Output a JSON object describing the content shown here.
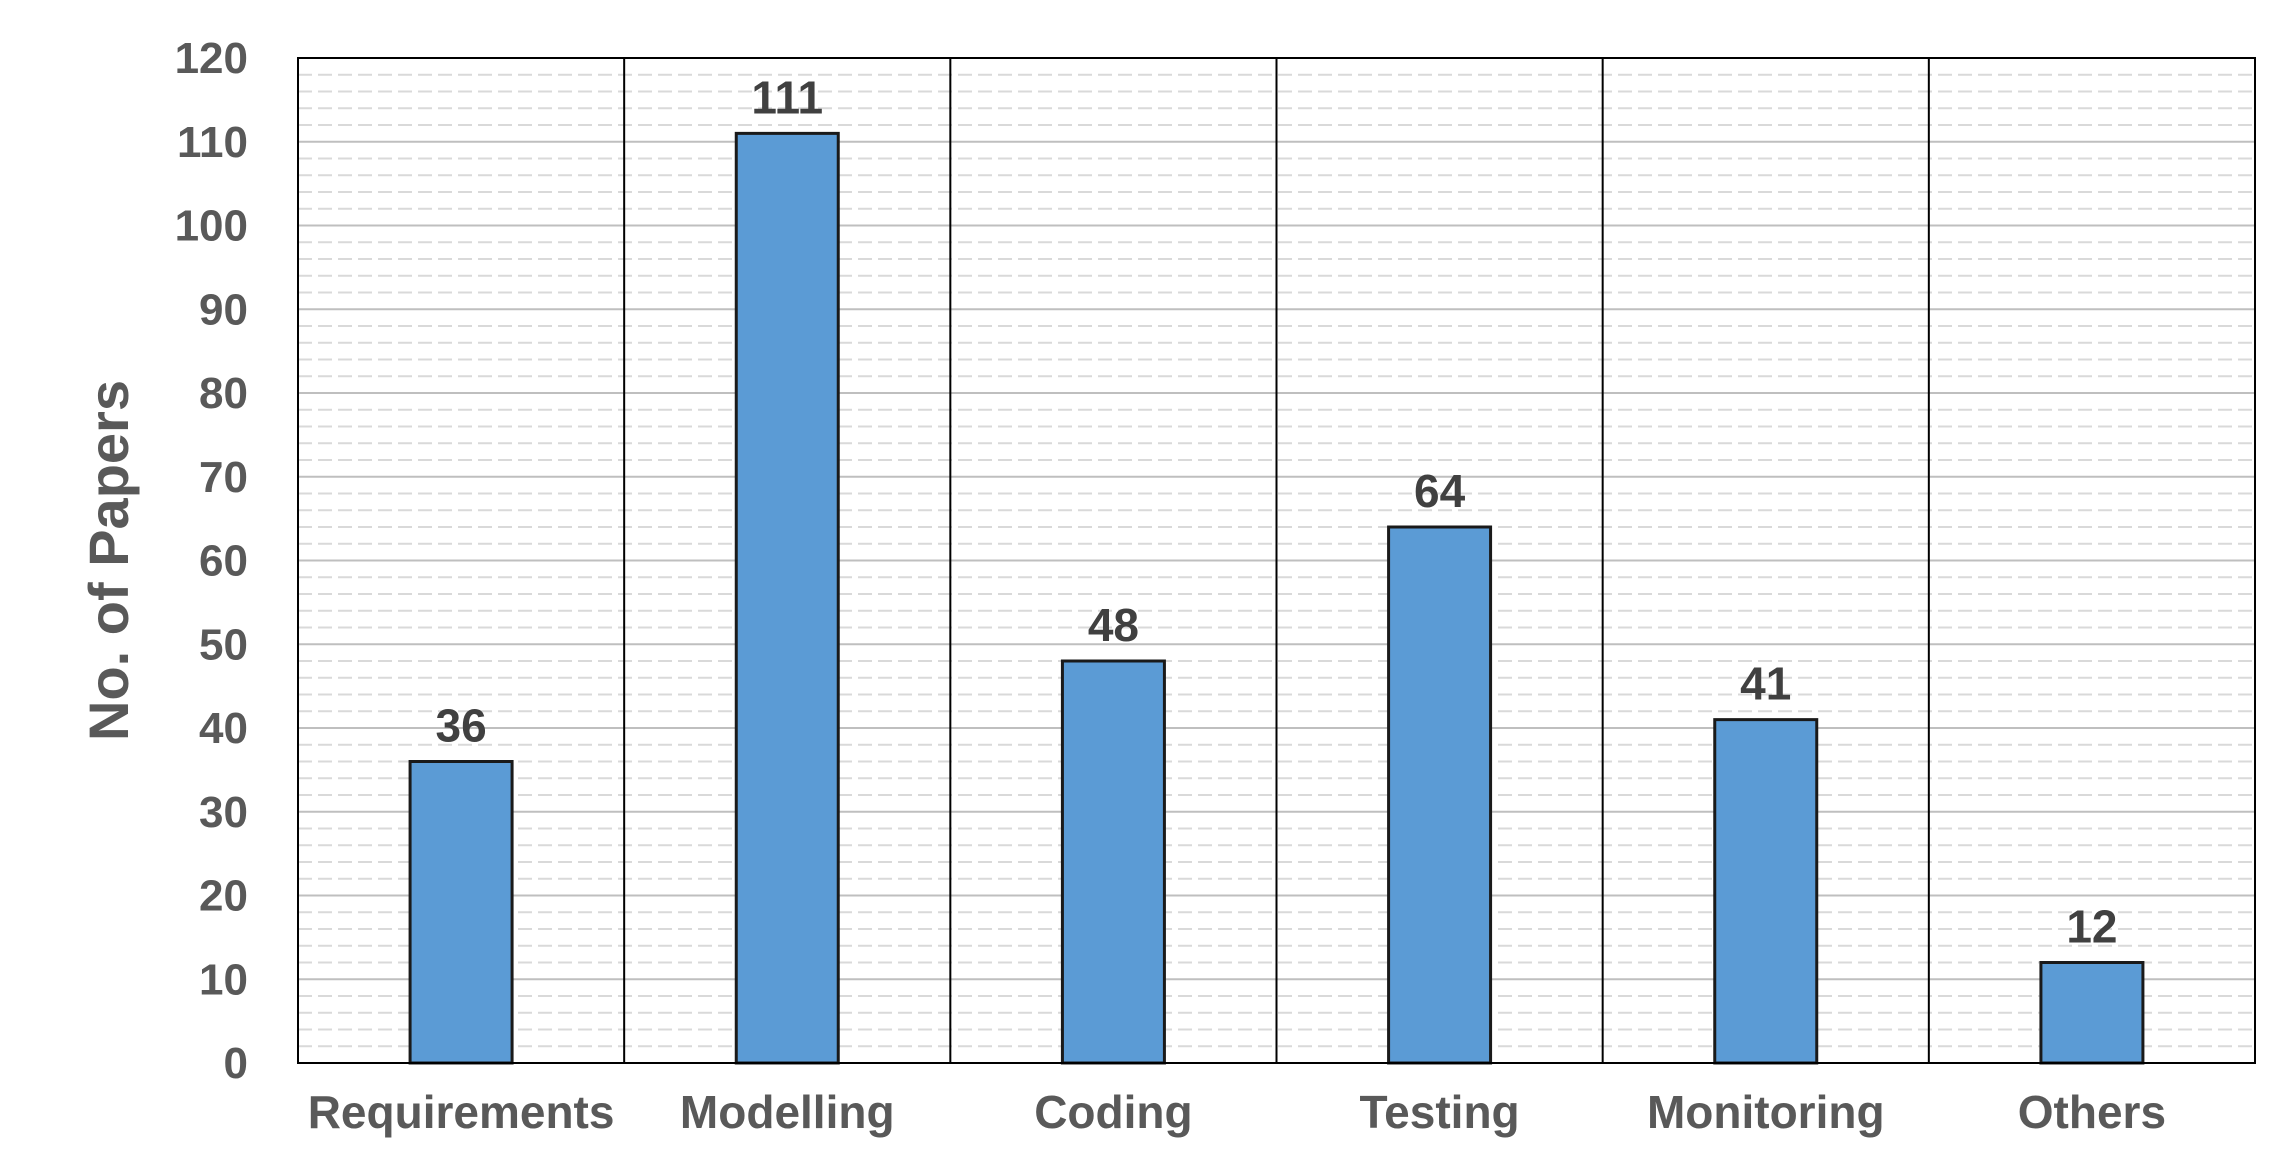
{
  "chart_data": {
    "type": "bar",
    "categories": [
      "Requirements",
      "Modelling",
      "Coding",
      "Testing",
      "Monitoring",
      "Others"
    ],
    "values": [
      36,
      111,
      48,
      64,
      41,
      12
    ],
    "title": "",
    "xlabel": "",
    "ylabel": "No. of Papers",
    "ylim": [
      0,
      120
    ],
    "yticks": [
      "0",
      "10",
      "20",
      "30",
      "40",
      "50",
      "60",
      "70",
      "80",
      "90",
      "100",
      "110",
      "120"
    ],
    "grid": true,
    "legend": "none",
    "colors": {
      "bar_fill": "#5B9BD5",
      "bar_stroke": "#1a1a1a",
      "major_grid": "#bfbfbf",
      "minor_grid": "#d9d9d9",
      "frame": "#000000",
      "text": "#595959",
      "data_label": "#404040"
    }
  }
}
